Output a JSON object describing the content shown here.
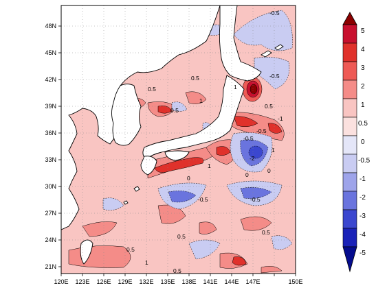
{
  "map": {
    "lon_labels": [
      "120E",
      "123E",
      "126E",
      "129E",
      "132E",
      "135E",
      "138E",
      "141E",
      "144E",
      "147E",
      "150E"
    ],
    "lat_labels": [
      "21N",
      "24N",
      "27N",
      "30N",
      "33N",
      "36N",
      "39N",
      "42N",
      "45N",
      "48N"
    ],
    "contour_labels": [
      "-0.5",
      "0.5",
      "1",
      "0.5",
      "1",
      "0",
      "-0.5",
      "0.5",
      "1",
      "0.5",
      "-0.5",
      "-1",
      "-0.5",
      "-2",
      "-0.5",
      "0",
      "1",
      "0",
      "-0.5",
      "0.5",
      "0.5",
      "0.5",
      "1",
      "0.5"
    ]
  },
  "colorbar": {
    "labels": [
      "5",
      "4",
      "3",
      "2",
      "1",
      "0.5",
      "0",
      "-0.5",
      "-1",
      "-2",
      "-3",
      "-4",
      "-5"
    ],
    "colors": [
      "#8b0000",
      "#c8102e",
      "#e0312b",
      "#ee5a55",
      "#f48c88",
      "#f9c5c2",
      "#ffffff",
      "#c9ccf2",
      "#9ea4ea",
      "#6a74de",
      "#3b47cf",
      "#1a22b8",
      "#050c8e"
    ]
  },
  "fill_colors": {
    "land": "#ffffff",
    "ocean_weak_pos": "#f9c5c2",
    "ocean_pos": "#f48c88",
    "ocean_strong_pos": "#e0312b",
    "ocean_very_strong": "#8b0000",
    "ocean_weak_neg": "#c9ccf2",
    "ocean_neg": "#9ea4ea",
    "ocean_strong_neg": "#3b47cf"
  }
}
